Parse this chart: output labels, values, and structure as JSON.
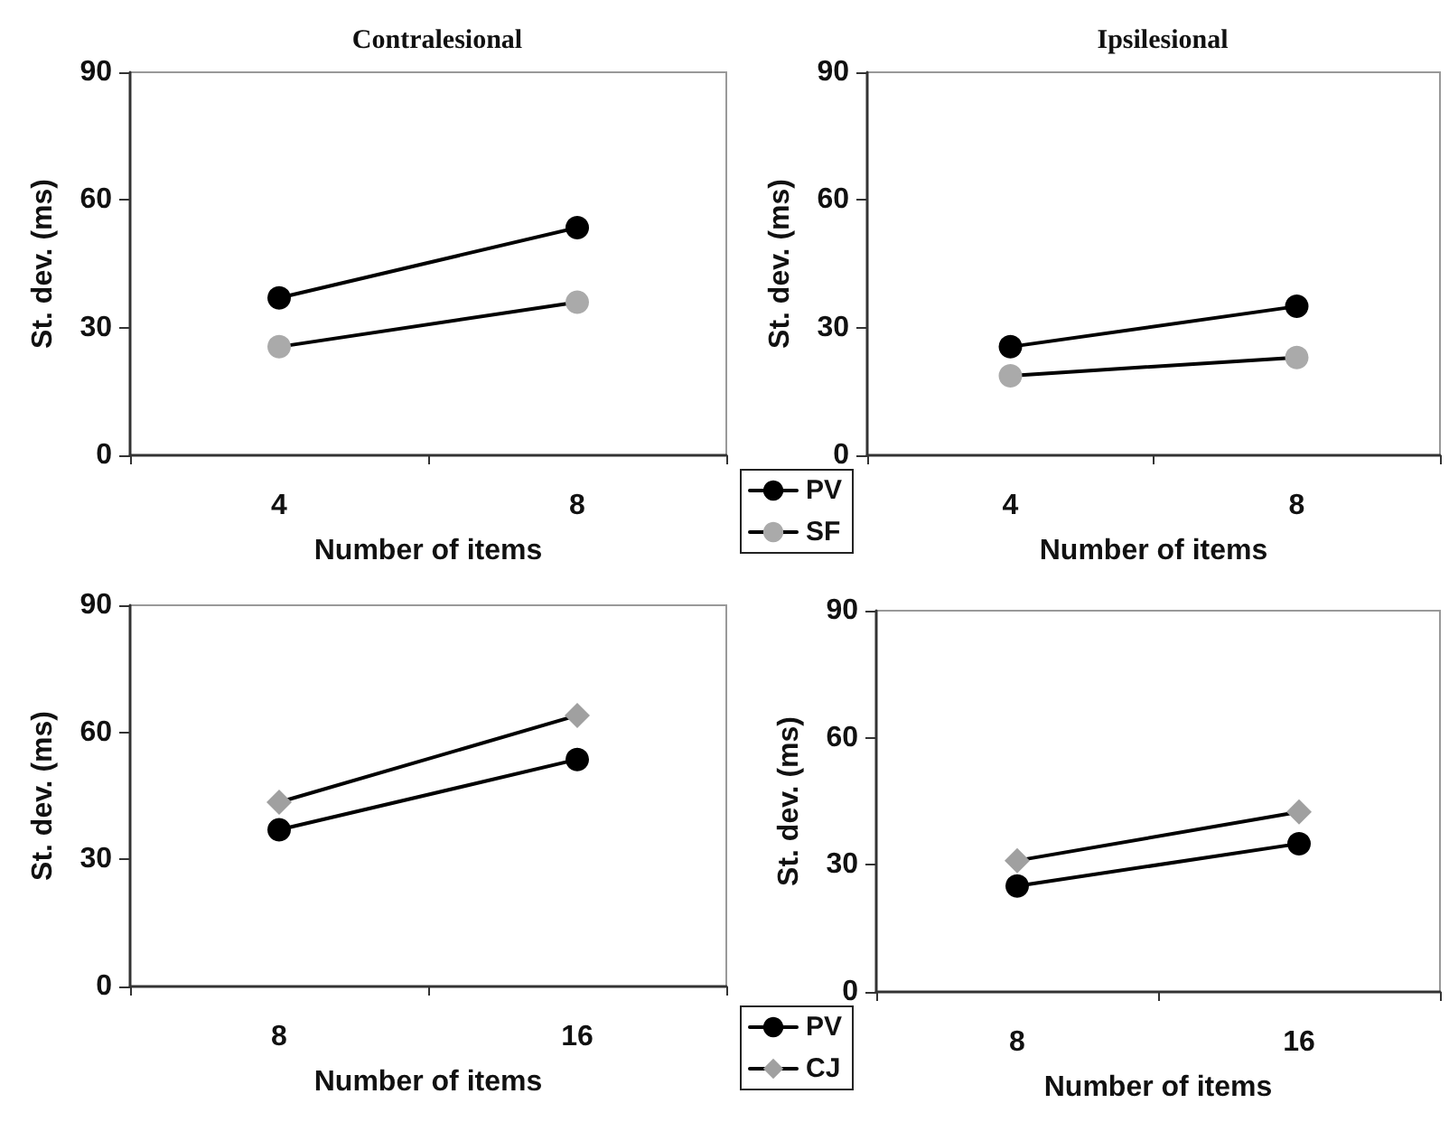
{
  "chart_data": [
    {
      "type": "line",
      "title": "Contralesional",
      "xlabel": "Number of items",
      "ylabel": "St. dev. (ms)",
      "categories": [
        "4",
        "8"
      ],
      "ylim": [
        0,
        90
      ],
      "yticks": [
        0,
        30,
        60,
        90
      ],
      "grid": false,
      "series": [
        {
          "color": "#000000",
          "marker": "circle",
          "values": [
            37,
            53.5
          ]
        },
        {
          "color": "#aaaaaa",
          "marker": "circle",
          "values": [
            25.5,
            36
          ]
        }
      ]
    },
    {
      "type": "line",
      "title": "Ipsilesional",
      "xlabel": "Number of items",
      "ylabel": "St. dev. (ms)",
      "categories": [
        "4",
        "8"
      ],
      "ylim": [
        0,
        90
      ],
      "yticks": [
        0,
        30,
        60,
        90
      ],
      "grid": false,
      "legend": "bottom left",
      "series": [
        {
          "name": "PV",
          "color": "#000000",
          "marker": "circle",
          "values": [
            25.5,
            35
          ]
        },
        {
          "name": "SF",
          "color": "#aaaaaa",
          "marker": "circle",
          "values": [
            18.7,
            23
          ]
        }
      ]
    },
    {
      "type": "line",
      "xlabel": "Number of items",
      "ylabel": "St. dev. (ms)",
      "categories": [
        "8",
        "16"
      ],
      "ylim": [
        0,
        90
      ],
      "yticks": [
        0,
        30,
        60,
        90
      ],
      "grid": false,
      "series": [
        {
          "color": "#000000",
          "marker": "circle",
          "values": [
            37,
            53.6
          ]
        },
        {
          "color": "#a0a0a0",
          "marker": "diamond",
          "values": [
            43.5,
            64
          ]
        }
      ]
    },
    {
      "type": "line",
      "xlabel": "Number of items",
      "ylabel": "St. dev. (ms)",
      "categories": [
        "8",
        "16"
      ],
      "ylim": [
        0,
        90
      ],
      "yticks": [
        0,
        30,
        60,
        90
      ],
      "grid": false,
      "legend": "bottom left",
      "series": [
        {
          "name": "PV",
          "color": "#000000",
          "marker": "circle",
          "values": [
            25,
            35
          ]
        },
        {
          "name": "CJ",
          "color": "#a0a0a0",
          "marker": "diamond",
          "values": [
            31,
            42.5
          ]
        }
      ]
    }
  ]
}
